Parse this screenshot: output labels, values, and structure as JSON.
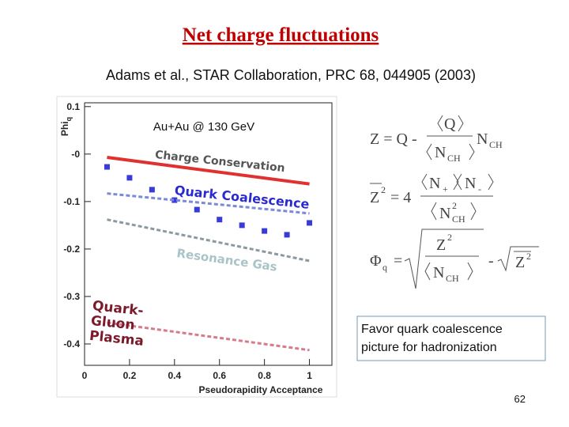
{
  "title": "Net charge fluctuations",
  "subtitle": "Adams et al., STAR Collaboration, PRC 68, 044905 (2003)",
  "chart_data": {
    "type": "scatter",
    "annotation": "Au+Au @ 130 GeV",
    "x_label": "Pseudorapidity Acceptance",
    "y_label": "Phi",
    "y_label_sub": "q",
    "xlim": [
      0,
      1.1
    ],
    "xticks": [
      0,
      0.2,
      0.4,
      0.6,
      0.8,
      1
    ],
    "ylim": [
      -0.445,
      0.108
    ],
    "yticks": [
      0.1,
      {
        "value": 0,
        "label": "-0"
      },
      -0.1,
      -0.2,
      -0.3,
      -0.4
    ],
    "series": [
      {
        "type": "scatter",
        "marker": "square",
        "color": "#3a3ad8",
        "x": [
          0.1,
          0.2,
          0.3,
          0.4,
          0.5,
          0.6,
          0.7,
          0.8,
          0.9,
          1.0
        ],
        "values": [
          -0.027,
          -0.05,
          -0.075,
          -0.097,
          -0.117,
          -0.138,
          -0.15,
          -0.162,
          -0.17,
          -0.145
        ]
      },
      {
        "type": "line",
        "name": "Charge Conservation",
        "color": "#e03030",
        "dash": false,
        "x": [
          0.1,
          1.0
        ],
        "values": [
          -0.007,
          -0.063
        ]
      },
      {
        "type": "line",
        "name": "Quark Coalescence",
        "color": "#7a8ad8",
        "dash": true,
        "x": [
          0.1,
          1.0
        ],
        "values": [
          -0.083,
          -0.125
        ]
      },
      {
        "type": "line",
        "name": "Resonance Gas",
        "color": "#8a9aa0",
        "dash": true,
        "x": [
          0.1,
          1.0
        ],
        "values": [
          -0.138,
          -0.225
        ]
      },
      {
        "type": "line",
        "name": "Quark-Gluon Plasma",
        "color": "#d87a8a",
        "dash": true,
        "x": [
          0.1,
          1.0
        ],
        "values": [
          -0.355,
          -0.413
        ]
      }
    ]
  },
  "formulas": {
    "z": {
      "lhs": "Z = Q -",
      "num": "Q",
      "den": "N",
      "den_sub": "CH",
      "tail": "N",
      "tail_sub": "CH"
    },
    "z2": {
      "lhs": "Z",
      "lhs_sup": "2",
      "eq": "= 4",
      "num1": "N",
      "num1_sub": "+",
      "num2": "N",
      "num2_sub": "-",
      "den": "N",
      "den_sup": "2",
      "den_sub": "CH"
    },
    "phi": {
      "lhs": "Φ",
      "lhs_sub": "q",
      "eq": "=",
      "num": "Z",
      "num_sup": "2",
      "den": "N",
      "den_sub": "CH",
      "minus": "-",
      "root": "Z",
      "root_sup": "2"
    }
  },
  "note": "Favor quark coalescence picture for hadronization",
  "page_number": "62"
}
